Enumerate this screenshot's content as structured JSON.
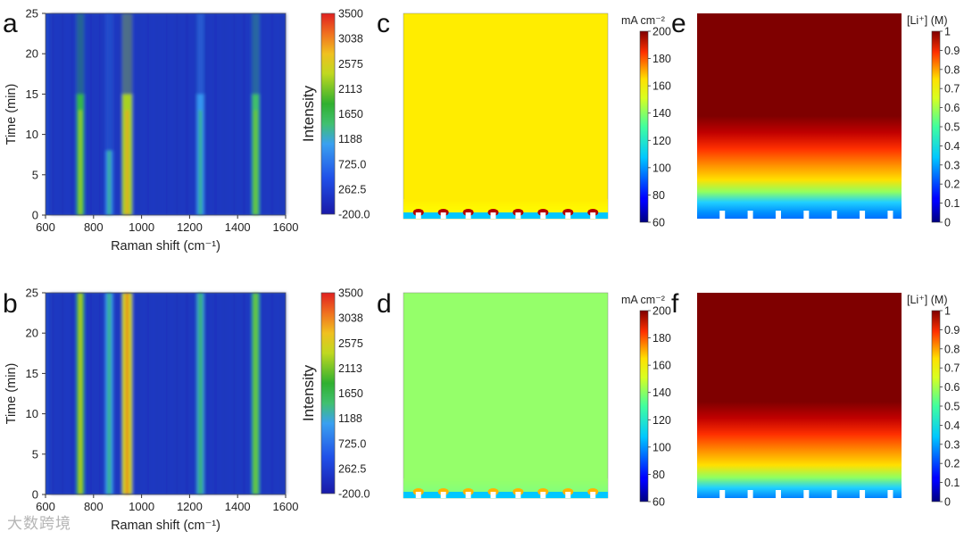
{
  "watermark": "大数跨境",
  "chart_data": [
    {
      "panel": "a",
      "type": "heatmap",
      "xlabel": "Raman shift (cm⁻¹)",
      "ylabel": "Time (min)",
      "xlim": [
        600,
        1600
      ],
      "ylim": [
        0,
        25
      ],
      "xticks": [
        "600",
        "800",
        "1000",
        "1200",
        "1400",
        "1600"
      ],
      "yticks": [
        "0",
        "5",
        "10",
        "15",
        "20",
        "25"
      ],
      "colorbar": {
        "title": "Intensity",
        "range": [
          -200,
          3500
        ],
        "ticks": [
          "3500",
          "3038",
          "2575",
          "2113",
          "1650",
          "1188",
          "725.0",
          "262.5",
          "-200.0"
        ]
      },
      "peaks": [
        {
          "x": 745,
          "intensity": 1700,
          "decay": "fades-after-15-min"
        },
        {
          "x": 865,
          "intensity": 900,
          "decay": "fades-after-8-min"
        },
        {
          "x": 940,
          "intensity": 2300,
          "decay": "fades-after-15-min"
        },
        {
          "x": 1245,
          "intensity": 1000,
          "decay": "fades-after-15-min"
        },
        {
          "x": 1475,
          "intensity": 1500,
          "decay": "fades-after-15-min"
        }
      ]
    },
    {
      "panel": "b",
      "type": "heatmap",
      "xlabel": "Raman shift (cm⁻¹)",
      "ylabel": "Time (min)",
      "xlim": [
        600,
        1600
      ],
      "ylim": [
        0,
        25
      ],
      "xticks": [
        "600",
        "800",
        "1000",
        "1200",
        "1400",
        "1600"
      ],
      "yticks": [
        "0",
        "5",
        "10",
        "15",
        "20",
        "25"
      ],
      "colorbar": {
        "title": "Intensity",
        "range": [
          -200,
          3500
        ],
        "ticks": [
          "3500",
          "3038",
          "2575",
          "2113",
          "1650",
          "1188",
          "725.0",
          "262.5",
          "-200.0"
        ]
      },
      "peaks": [
        {
          "x": 745,
          "intensity": 1900,
          "decay": "constant"
        },
        {
          "x": 865,
          "intensity": 1100,
          "decay": "constant"
        },
        {
          "x": 940,
          "intensity": 2500,
          "decay": "constant"
        },
        {
          "x": 1245,
          "intensity": 1200,
          "decay": "constant"
        },
        {
          "x": 1475,
          "intensity": 1500,
          "decay": "constant"
        }
      ]
    },
    {
      "panel": "c",
      "type": "heatmap",
      "quantity": "current density",
      "colorbar": {
        "unit": "mA cm⁻²",
        "range": [
          60,
          200
        ],
        "ticks": [
          "200",
          "180",
          "160",
          "140",
          "120",
          "100",
          "80",
          "60"
        ]
      },
      "bulk_value": 150,
      "electrode_count": 8
    },
    {
      "panel": "d",
      "type": "heatmap",
      "quantity": "current density",
      "colorbar": {
        "unit": "mA cm⁻²",
        "range": [
          60,
          200
        ],
        "ticks": [
          "200",
          "180",
          "160",
          "140",
          "120",
          "100",
          "80",
          "60"
        ]
      },
      "bulk_value": 133,
      "electrode_count": 8
    },
    {
      "panel": "e",
      "type": "heatmap",
      "quantity": "Li+ concentration",
      "colorbar": {
        "unit": "[Li⁺] (M)",
        "range": [
          0,
          1
        ],
        "ticks": [
          "1",
          "0.9",
          "0.8",
          "0.7",
          "0.6",
          "0.5",
          "0.4",
          "0.3",
          "0.2",
          "0.1",
          "0"
        ]
      },
      "depletion_fraction": 0.55,
      "electrode_count": 7
    },
    {
      "panel": "f",
      "type": "heatmap",
      "quantity": "Li+ concentration",
      "colorbar": {
        "unit": "[Li⁺] (M)",
        "range": [
          0,
          1
        ],
        "ticks": [
          "1",
          "0.9",
          "0.8",
          "0.7",
          "0.6",
          "0.5",
          "0.4",
          "0.3",
          "0.2",
          "0.1",
          "0"
        ]
      },
      "depletion_fraction": 0.5,
      "electrode_count": 7
    }
  ]
}
